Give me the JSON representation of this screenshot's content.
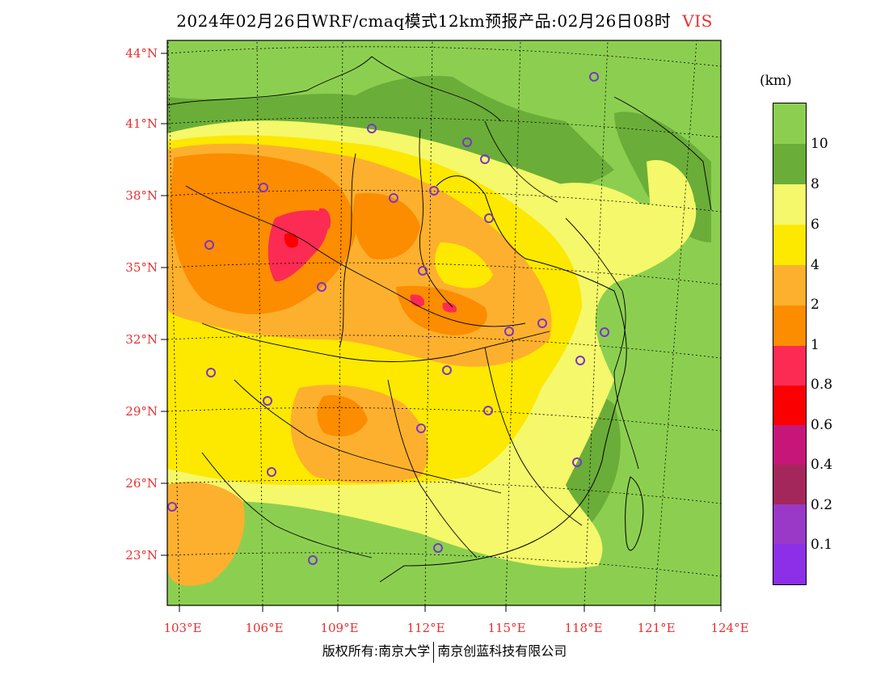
{
  "title": "2024年02月26日WRF/cmaq模式12km预报产品:02月26日08时",
  "variable": "VIS",
  "unit": "(km)",
  "legend": {
    "items": [
      {
        "label": "10",
        "color": "#8ccf50"
      },
      {
        "label": "8",
        "color": "#6aad38"
      },
      {
        "label": "6",
        "color": "#f4f86a"
      },
      {
        "label": "4",
        "color": "#fde800"
      },
      {
        "label": "2",
        "color": "#fdb02d"
      },
      {
        "label": "1",
        "color": "#fc8c00"
      },
      {
        "label": "0.8",
        "color": "#fb2b53"
      },
      {
        "label": "0.6",
        "color": "#fb0000"
      },
      {
        "label": "0.4",
        "color": "#c7167a"
      },
      {
        "label": "0.2",
        "color": "#a4275b"
      },
      {
        "label": "0.1",
        "color": "#9a38c8"
      },
      {
        "label": "",
        "color": "#8d2ee8"
      }
    ]
  },
  "axes": {
    "lat_labels": [
      "44°N",
      "41°N",
      "38°N",
      "35°N",
      "32°N",
      "29°N",
      "26°N",
      "23°N"
    ],
    "lon_labels": [
      "103°E",
      "106°E",
      "109°E",
      "112°E",
      "115°E",
      "118°E",
      "121°E",
      "124°E"
    ]
  },
  "footer": {
    "left": "版权所有:南京大学",
    "right": "南京创蓝科技有限公司"
  }
}
